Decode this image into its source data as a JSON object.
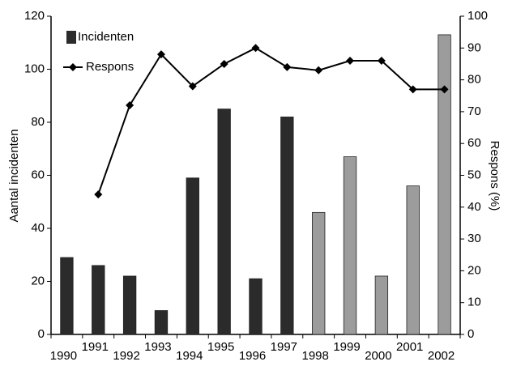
{
  "chart_data": {
    "type": "bar",
    "ylabel": "Aantal incidenten",
    "y2label": "Respons (%)",
    "categories": [
      "1990",
      "1991",
      "1992",
      "1993",
      "1994",
      "1995",
      "1996",
      "1997",
      "1998",
      "1999",
      "2000",
      "2001",
      "2002"
    ],
    "series": [
      {
        "name": "Incidenten",
        "type": "bar",
        "color": "#2b2b2b",
        "colors": [
          "#2b2b2b",
          "#2b2b2b",
          "#2b2b2b",
          "#2b2b2b",
          "#2b2b2b",
          "#2b2b2b",
          "#2b2b2b",
          "#2b2b2b",
          "#9c9c9c",
          "#9c9c9c",
          "#9c9c9c",
          "#9c9c9c",
          "#9c9c9c"
        ],
        "values": [
          29,
          26,
          22,
          9,
          59,
          85,
          21,
          82,
          46,
          67,
          22,
          56,
          113
        ]
      },
      {
        "name": "Respons",
        "type": "line",
        "axis": "y2",
        "color": "#000000",
        "values": [
          null,
          44,
          72,
          88,
          78,
          85,
          90,
          84,
          83,
          86,
          86,
          77,
          77
        ]
      }
    ],
    "ylim": [
      0,
      120
    ],
    "yticks": [
      0,
      20,
      40,
      60,
      80,
      100,
      120
    ],
    "y2lim": [
      0,
      100
    ],
    "y2ticks": [
      0,
      10,
      20,
      30,
      40,
      50,
      60,
      70,
      80,
      90,
      100
    ],
    "legend": "upper left",
    "grid": false
  }
}
